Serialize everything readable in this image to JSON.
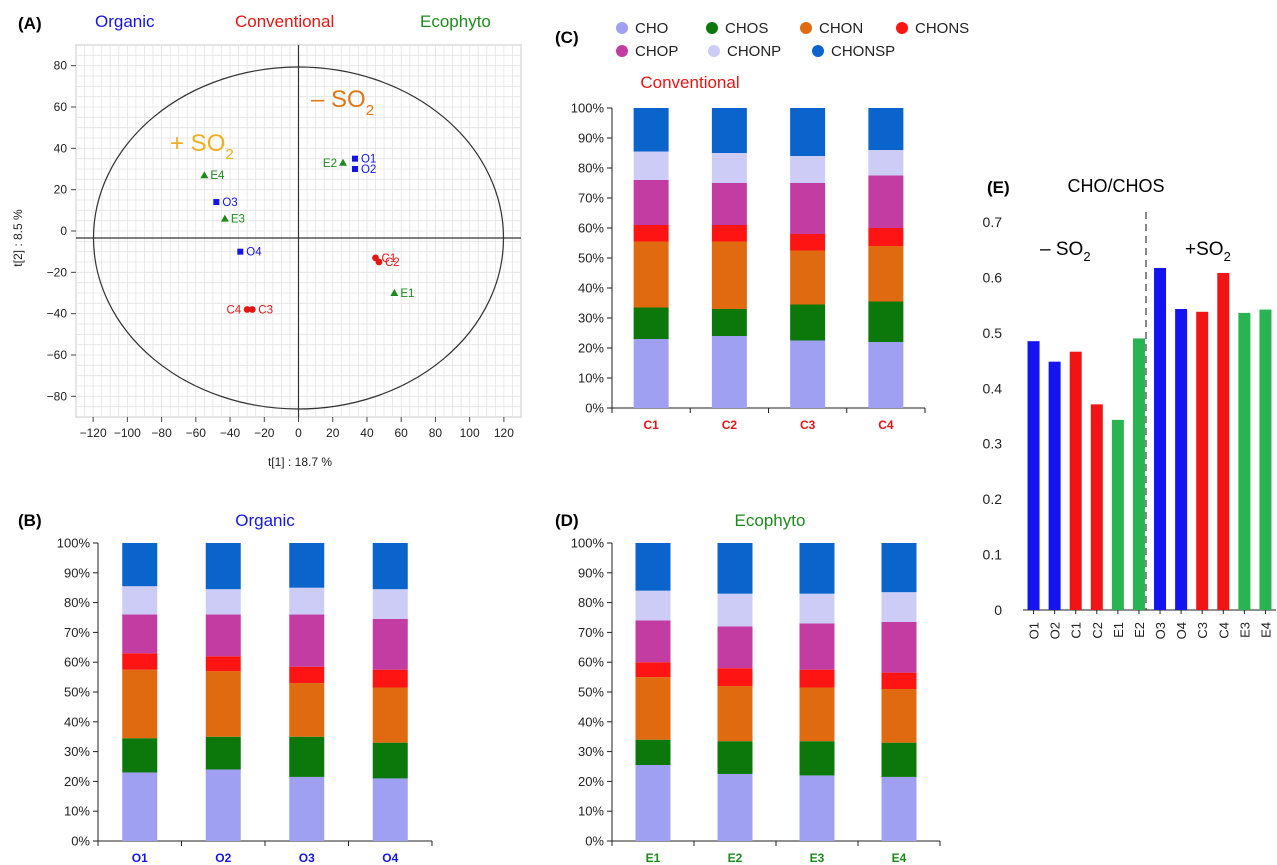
{
  "colors": {
    "organic": "#1515e6",
    "conventional": "#e61515",
    "ecophyto": "#1e8a1e",
    "so2_label": "#e07818",
    "so2_label_plus": "#eeb020",
    "CHO": "#a0a0f2",
    "CHOS": "#0c780c",
    "CHON": "#e06a10",
    "CHONS": "#ff1414",
    "CHOP": "#c33ca2",
    "CHONP": "#ccccf7",
    "CHONSP": "#0b64cc",
    "bar_blue": "#1414f0",
    "bar_red": "#f01414",
    "bar_green": "#28b450"
  },
  "chart_data": [
    {
      "panel": "(A)",
      "type": "scatter",
      "groups": [
        "Organic",
        "Conventional",
        "Ecophyto"
      ],
      "xlabel": "t[1] : 18.7 %",
      "ylabel": "t[2] : 8.5 %",
      "xlim": [
        -130,
        130
      ],
      "ylim": [
        -90,
        90
      ],
      "xticks": [
        -120,
        -100,
        -80,
        -60,
        -40,
        -20,
        0,
        20,
        40,
        60,
        80,
        100,
        120
      ],
      "yticks": [
        -80,
        -60,
        -40,
        -20,
        0,
        20,
        40,
        60,
        80
      ],
      "grid": true,
      "annotations": [
        "+ SO",
        "2",
        "– SO",
        "2"
      ],
      "points": [
        {
          "label": "O1",
          "group": "Organic",
          "marker": "square",
          "x": 33,
          "y": 35
        },
        {
          "label": "O2",
          "group": "Organic",
          "marker": "square",
          "x": 33,
          "y": 30
        },
        {
          "label": "O3",
          "group": "Organic",
          "marker": "square",
          "x": -48,
          "y": 14
        },
        {
          "label": "O4",
          "group": "Organic",
          "marker": "square",
          "x": -34,
          "y": -10
        },
        {
          "label": "C1",
          "group": "Conventional",
          "marker": "circle",
          "x": 45,
          "y": -13
        },
        {
          "label": "C2",
          "group": "Conventional",
          "marker": "circle",
          "x": 47,
          "y": -15
        },
        {
          "label": "C3",
          "group": "Conventional",
          "marker": "circle",
          "x": -27,
          "y": -38
        },
        {
          "label": "C4",
          "group": "Conventional",
          "marker": "circle",
          "x": -30,
          "y": -38
        },
        {
          "label": "E1",
          "group": "Ecophyto",
          "marker": "triangle",
          "x": 56,
          "y": -30
        },
        {
          "label": "E2",
          "group": "Ecophyto",
          "marker": "triangle",
          "x": 26,
          "y": 33
        },
        {
          "label": "E3",
          "group": "Ecophyto",
          "marker": "triangle",
          "x": -43,
          "y": 6
        },
        {
          "label": "E4",
          "group": "Ecophyto",
          "marker": "triangle",
          "x": -55,
          "y": 27
        }
      ]
    },
    {
      "panel": "(B)",
      "type": "bar",
      "stacked": true,
      "title": "Organic",
      "categories": [
        "O1",
        "O2",
        "O3",
        "O4"
      ],
      "yticks": [
        "0%",
        "10%",
        "20%",
        "30%",
        "40%",
        "50%",
        "60%",
        "70%",
        "80%",
        "90%",
        "100%"
      ],
      "series": [
        {
          "name": "CHO",
          "values": [
            23,
            24,
            21.5,
            21
          ]
        },
        {
          "name": "CHOS",
          "values": [
            11.5,
            11,
            13.5,
            12
          ]
        },
        {
          "name": "CHON",
          "values": [
            23,
            22,
            18,
            18.5
          ]
        },
        {
          "name": "CHONS",
          "values": [
            5.5,
            5,
            5.5,
            6
          ]
        },
        {
          "name": "CHOP",
          "values": [
            13,
            14,
            17.5,
            17
          ]
        },
        {
          "name": "CHONP",
          "values": [
            9.5,
            8.5,
            9,
            10
          ]
        },
        {
          "name": "CHONSP",
          "values": [
            14.5,
            15.5,
            15,
            15.5
          ]
        }
      ]
    },
    {
      "panel": "(C)",
      "type": "bar",
      "stacked": true,
      "title": "Conventional",
      "categories": [
        "C1",
        "C2",
        "C3",
        "C4"
      ],
      "yticks": [
        "0%",
        "10%",
        "20%",
        "30%",
        "40%",
        "50%",
        "60%",
        "70%",
        "80%",
        "90%",
        "100%"
      ],
      "series": [
        {
          "name": "CHO",
          "values": [
            23,
            24,
            22.5,
            22
          ]
        },
        {
          "name": "CHOS",
          "values": [
            10.5,
            9,
            12,
            13.5
          ]
        },
        {
          "name": "CHON",
          "values": [
            22,
            22.5,
            18,
            18.5
          ]
        },
        {
          "name": "CHONS",
          "values": [
            5.5,
            5.5,
            5.5,
            6
          ]
        },
        {
          "name": "CHOP",
          "values": [
            15,
            14,
            17,
            17.5
          ]
        },
        {
          "name": "CHONP",
          "values": [
            9.5,
            10,
            9,
            8.5
          ]
        },
        {
          "name": "CHONSP",
          "values": [
            14.5,
            15,
            16,
            14
          ]
        }
      ]
    },
    {
      "panel": "(D)",
      "type": "bar",
      "stacked": true,
      "title": "Ecophyto",
      "categories": [
        "E1",
        "E2",
        "E3",
        "E4"
      ],
      "yticks": [
        "0%",
        "10%",
        "20%",
        "30%",
        "40%",
        "50%",
        "60%",
        "70%",
        "80%",
        "90%",
        "100%"
      ],
      "series": [
        {
          "name": "CHO",
          "values": [
            25.5,
            22.5,
            22,
            21.5
          ]
        },
        {
          "name": "CHOS",
          "values": [
            8.5,
            11,
            11.5,
            11.5
          ]
        },
        {
          "name": "CHON",
          "values": [
            21,
            18.5,
            18,
            18
          ]
        },
        {
          "name": "CHONS",
          "values": [
            5,
            6,
            6,
            5.5
          ]
        },
        {
          "name": "CHOP",
          "values": [
            14,
            14,
            15.5,
            17
          ]
        },
        {
          "name": "CHONP",
          "values": [
            10,
            11,
            10,
            10
          ]
        },
        {
          "name": "CHONSP",
          "values": [
            16,
            17,
            17,
            16.5
          ]
        }
      ]
    },
    {
      "panel": "(E)",
      "type": "bar",
      "title": "CHO/CHOS",
      "categories": [
        "O1",
        "O2",
        "C1",
        "C2",
        "E1",
        "E2",
        "O3",
        "O4",
        "C3",
        "C4",
        "E3",
        "E4"
      ],
      "values": [
        0.485,
        0.448,
        0.466,
        0.371,
        0.343,
        0.49,
        0.617,
        0.543,
        0.538,
        0.608,
        0.536,
        0.542
      ],
      "bar_colors": [
        "blue",
        "blue",
        "red",
        "red",
        "green",
        "green",
        "blue",
        "blue",
        "red",
        "red",
        "green",
        "green"
      ],
      "ylim": [
        0,
        0.7
      ],
      "yticks": [
        "0",
        "0.1",
        "0.2",
        "0.3",
        "0.4",
        "0.5",
        "0.6",
        "0.7"
      ],
      "annotations": [
        "– SO",
        "2",
        "+SO",
        "2"
      ]
    }
  ],
  "legend": {
    "items": [
      "CHO",
      "CHOS",
      "CHON",
      "CHONS",
      "CHOP",
      "CHONP",
      "CHONSP"
    ]
  }
}
